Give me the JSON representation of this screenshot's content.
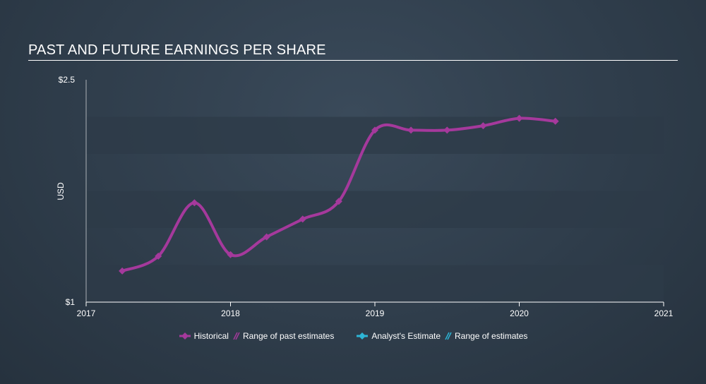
{
  "chart_data": {
    "type": "line",
    "title": "PAST AND FUTURE EARNINGS PER SHARE",
    "ylabel": "USD",
    "xlabel": "",
    "ylim": [
      1,
      2.5
    ],
    "xlim": [
      2017,
      2021
    ],
    "y_tick_labels": [
      "$2.5",
      "$1"
    ],
    "x_tick_labels": [
      "2017",
      "2018",
      "2019",
      "2020",
      "2021"
    ],
    "series": [
      {
        "name": "Historical",
        "color": "#a5399c",
        "x": [
          2017.25,
          2017.5,
          2017.75,
          2018.0,
          2018.25,
          2018.5,
          2018.75,
          2019.0,
          2019.25,
          2019.5,
          2019.75,
          2020.0,
          2020.25
        ],
        "y": [
          1.21,
          1.31,
          1.67,
          1.32,
          1.44,
          1.56,
          1.68,
          2.16,
          2.16,
          2.16,
          2.19,
          2.24,
          2.22
        ]
      }
    ],
    "legend": [
      {
        "label": "Historical",
        "icon": "diamond-line-icon",
        "color": "#a5399c"
      },
      {
        "label": "Range of past estimates",
        "icon": "hatch-icon",
        "color": "#a5399c"
      },
      {
        "label": "Analyst's Estimate",
        "icon": "diamond-line-icon",
        "color": "#2db5d6"
      },
      {
        "label": "Range of estimates",
        "icon": "hatch-icon",
        "color": "#2db5d6"
      }
    ],
    "colors": {
      "band": "#2e3b48",
      "axis": "#ffffff"
    }
  }
}
